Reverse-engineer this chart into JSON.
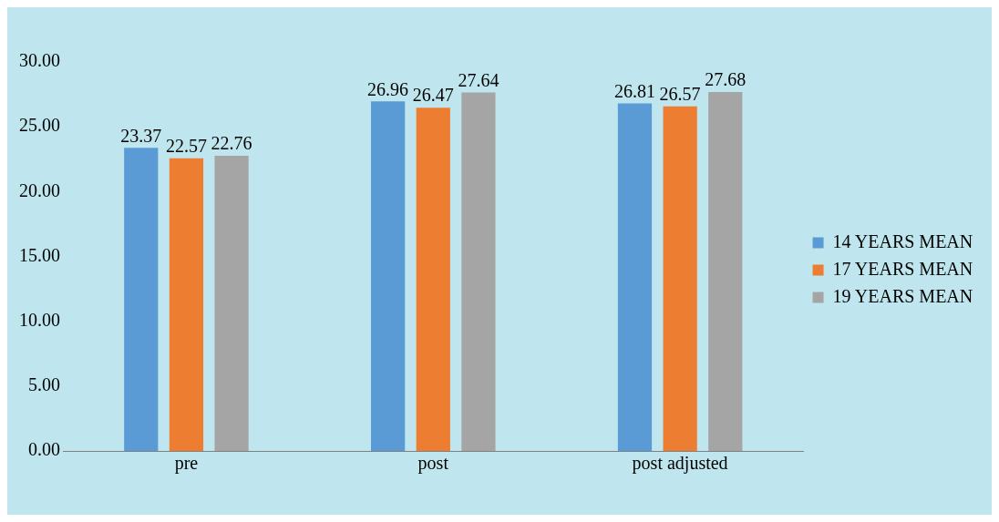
{
  "chart_data": {
    "type": "bar",
    "categories": [
      "pre",
      "post",
      "post adjusted"
    ],
    "series": [
      {
        "name": "14 YEARS MEAN",
        "color": "#5b9bd5",
        "values": [
          23.37,
          26.96,
          26.81
        ]
      },
      {
        "name": "17 YEARS MEAN",
        "color": "#ed7d31",
        "values": [
          22.57,
          26.47,
          26.57
        ]
      },
      {
        "name": "19 YEARS MEAN",
        "color": "#a5a5a5",
        "values": [
          22.76,
          27.64,
          27.68
        ]
      }
    ],
    "ylim": [
      0,
      30
    ],
    "yticks": [
      {
        "value": 0,
        "label": "0.00"
      },
      {
        "value": 5,
        "label": "5.00"
      },
      {
        "value": 10,
        "label": "10.00"
      },
      {
        "value": 15,
        "label": "15.00"
      },
      {
        "value": 20,
        "label": "20.00"
      },
      {
        "value": 25,
        "label": "25.00"
      },
      {
        "value": 30,
        "label": "30.00"
      }
    ],
    "grid": false,
    "legend": "right",
    "data_labels": true
  }
}
